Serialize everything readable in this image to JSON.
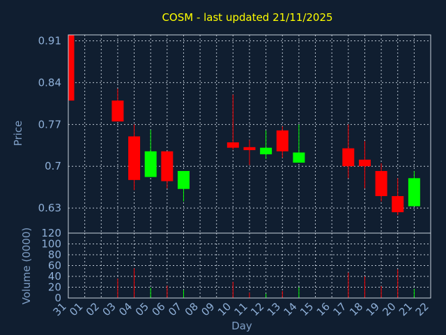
{
  "chart_data": [
    {
      "type": "candlestick",
      "title": "COSM - last updated 21/11/2025",
      "ylabel": "Price",
      "ylim": [
        0.588,
        0.92
      ],
      "yticks": [
        "0.91",
        "0.84",
        "0.77",
        "0.7",
        "0.63"
      ],
      "ytick_values": [
        0.91,
        0.84,
        0.77,
        0.7,
        0.63
      ],
      "up_color": "#00ff00",
      "down_color": "#ff0000",
      "grid": true,
      "candles": [
        {
          "day": "31",
          "open": 0.92,
          "high": 0.92,
          "low": 0.81,
          "close": 0.81
        },
        {
          "day": "03",
          "open": 0.81,
          "high": 0.83,
          "low": 0.775,
          "close": 0.775
        },
        {
          "day": "04",
          "open": 0.75,
          "high": 0.77,
          "low": 0.66,
          "close": 0.677
        },
        {
          "day": "05",
          "open": 0.682,
          "high": 0.761,
          "low": 0.682,
          "close": 0.725
        },
        {
          "day": "06",
          "open": 0.725,
          "high": 0.725,
          "low": 0.663,
          "close": 0.675
        },
        {
          "day": "07",
          "open": 0.662,
          "high": 0.692,
          "low": 0.641,
          "close": 0.692
        },
        {
          "day": "10",
          "open": 0.74,
          "high": 0.82,
          "low": 0.728,
          "close": 0.731
        },
        {
          "day": "11",
          "open": 0.732,
          "high": 0.744,
          "low": 0.702,
          "close": 0.727
        },
        {
          "day": "12",
          "open": 0.72,
          "high": 0.76,
          "low": 0.712,
          "close": 0.731
        },
        {
          "day": "13",
          "open": 0.76,
          "high": 0.767,
          "low": 0.714,
          "close": 0.725
        },
        {
          "day": "14",
          "open": 0.706,
          "high": 0.77,
          "low": 0.706,
          "close": 0.723
        },
        {
          "day": "17",
          "open": 0.73,
          "high": 0.77,
          "low": 0.68,
          "close": 0.7
        },
        {
          "day": "18",
          "open": 0.711,
          "high": 0.742,
          "low": 0.663,
          "close": 0.7
        },
        {
          "day": "19",
          "open": 0.692,
          "high": 0.705,
          "low": 0.641,
          "close": 0.65
        },
        {
          "day": "20",
          "open": 0.65,
          "high": 0.68,
          "low": 0.618,
          "close": 0.623
        },
        {
          "day": "21",
          "open": 0.633,
          "high": 0.692,
          "low": 0.633,
          "close": 0.68
        }
      ]
    },
    {
      "type": "bar",
      "ylabel": "Volume (0000)",
      "xlabel": "Day",
      "ylim": [
        0,
        120
      ],
      "yticks": [
        "120",
        "100",
        "80",
        "60",
        "40",
        "20",
        "0"
      ],
      "ytick_values": [
        120,
        100,
        80,
        60,
        40,
        20,
        0
      ],
      "categories": [
        "31",
        "01",
        "02",
        "03",
        "04",
        "05",
        "06",
        "07",
        "08",
        "09",
        "10",
        "11",
        "12",
        "13",
        "14",
        "15",
        "16",
        "17",
        "18",
        "19",
        "20",
        "21",
        "22"
      ],
      "values": [
        0,
        0,
        0,
        36,
        55,
        19,
        23,
        15,
        0,
        0,
        30,
        10,
        8,
        13,
        20,
        0,
        0,
        47,
        40,
        22,
        53,
        17,
        0
      ],
      "bar_colors": [
        "#ff0000",
        "#ff0000",
        "#ff0000",
        "#ff0000",
        "#ff0000",
        "#00ff00",
        "#ff0000",
        "#00ff00",
        "#ff0000",
        "#ff0000",
        "#ff0000",
        "#ff0000",
        "#00ff00",
        "#ff0000",
        "#00ff00",
        "#ff0000",
        "#ff0000",
        "#ff0000",
        "#ff0000",
        "#ff0000",
        "#ff0000",
        "#00ff00",
        "#ff0000"
      ],
      "grid": true
    }
  ]
}
